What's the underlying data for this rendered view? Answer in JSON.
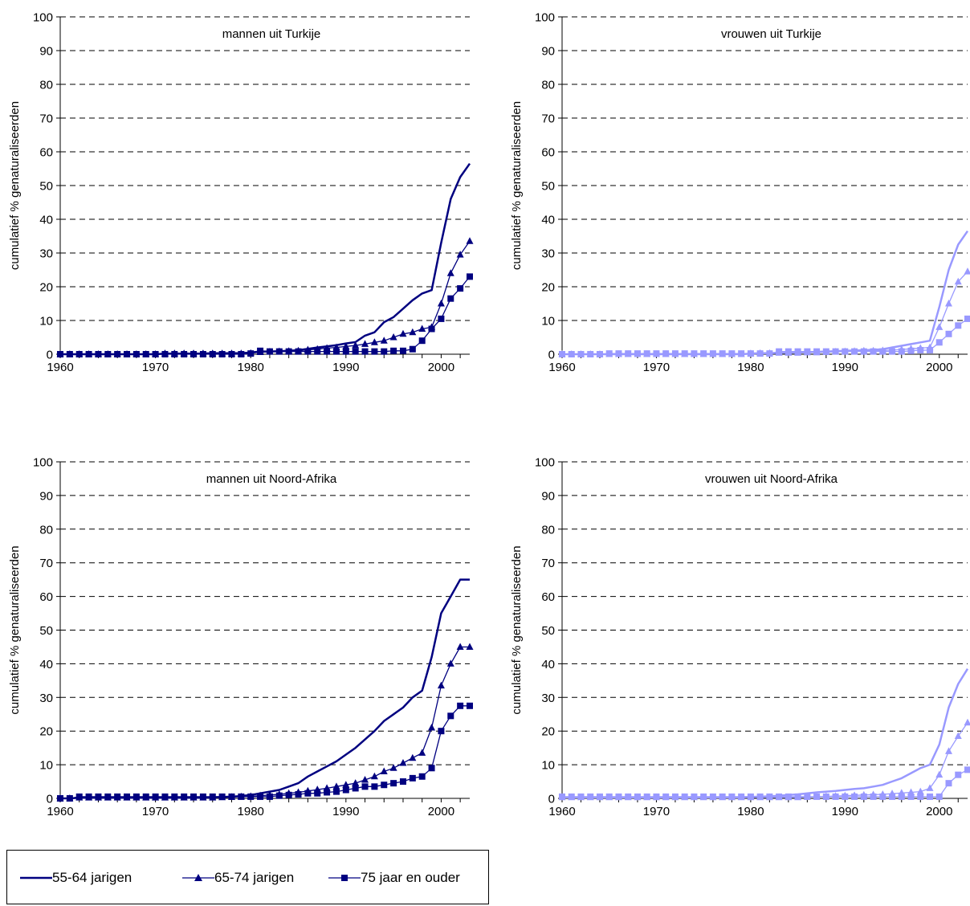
{
  "colors": {
    "men": "#000080",
    "women": "#9999ff"
  },
  "y_axis_label": "cumulatief  % genaturaliseerden",
  "legend": [
    {
      "label": "55-64 jarigen",
      "marker": "none"
    },
    {
      "label": "65-74 jarigen",
      "marker": "triangle"
    },
    {
      "label": "75 jaar en ouder",
      "marker": "square"
    }
  ],
  "chart_data": [
    {
      "type": "line",
      "title": "mannen uit Turkije",
      "ylabel": "cumulatief  % genaturaliseerden",
      "xlim": [
        1960,
        2003
      ],
      "ylim": [
        0,
        100
      ],
      "xticks": [
        1960,
        1970,
        1980,
        1990,
        2000
      ],
      "yticks": [
        0,
        10,
        20,
        30,
        40,
        50,
        60,
        70,
        80,
        90,
        100
      ],
      "grid": true,
      "x": [
        1960,
        1961,
        1962,
        1963,
        1964,
        1965,
        1966,
        1967,
        1968,
        1969,
        1970,
        1971,
        1972,
        1973,
        1974,
        1975,
        1976,
        1977,
        1978,
        1979,
        1980,
        1981,
        1982,
        1983,
        1984,
        1985,
        1986,
        1987,
        1988,
        1989,
        1990,
        1991,
        1992,
        1993,
        1994,
        1995,
        1996,
        1997,
        1998,
        1999,
        2000,
        2001,
        2002,
        2003
      ],
      "series": [
        {
          "name": "55-64 jarigen",
          "marker": "none",
          "values": [
            0,
            0,
            0,
            0,
            0,
            0,
            0,
            0,
            0,
            0,
            0,
            0.2,
            0.2,
            0.2,
            0.2,
            0.2,
            0.3,
            0.3,
            0.3,
            0.3,
            0.5,
            0.8,
            0.8,
            0.9,
            1.0,
            1.2,
            1.6,
            2.0,
            2.3,
            2.7,
            3.2,
            3.6,
            5.5,
            6.5,
            9.5,
            11,
            13.5,
            16,
            18,
            19,
            33,
            46,
            52.5,
            56.5
          ]
        },
        {
          "name": "65-74 jarigen",
          "marker": "triangle",
          "values": [
            0,
            0,
            0,
            0,
            0,
            0,
            0,
            0,
            0,
            0,
            0,
            0.2,
            0.2,
            0.2,
            0.2,
            0.2,
            0.2,
            0.2,
            0.2,
            0.2,
            0.3,
            0.6,
            0.7,
            0.8,
            0.9,
            1.0,
            1.3,
            1.5,
            1.8,
            2.0,
            2.3,
            2.6,
            3.0,
            3.5,
            4.0,
            5.0,
            6.0,
            6.5,
            7.5,
            8.0,
            15,
            24,
            29.5,
            33.5
          ]
        },
        {
          "name": "75 jaar en ouder",
          "marker": "square",
          "values": [
            0,
            0,
            0,
            0,
            0,
            0,
            0,
            0,
            0,
            0,
            0,
            0,
            0,
            0,
            0,
            0,
            0,
            0,
            0,
            0,
            0.2,
            1.0,
            0.8,
            0.8,
            0.8,
            0.8,
            0.8,
            0.8,
            0.8,
            0.8,
            0.8,
            0.8,
            0.8,
            0.8,
            0.8,
            1.0,
            1.0,
            1.5,
            4.0,
            7.5,
            10.5,
            16.5,
            19.5,
            23
          ]
        }
      ]
    },
    {
      "type": "line",
      "title": "vrouwen uit Turkije",
      "ylabel": "cumulatief  % genaturaliseerden",
      "xlim": [
        1960,
        2003
      ],
      "ylim": [
        0,
        100
      ],
      "xticks": [
        1960,
        1970,
        1980,
        1990,
        2000
      ],
      "yticks": [
        0,
        10,
        20,
        30,
        40,
        50,
        60,
        70,
        80,
        90,
        100
      ],
      "grid": true,
      "x": [
        1960,
        1961,
        1962,
        1963,
        1964,
        1965,
        1966,
        1967,
        1968,
        1969,
        1970,
        1971,
        1972,
        1973,
        1974,
        1975,
        1976,
        1977,
        1978,
        1979,
        1980,
        1981,
        1982,
        1983,
        1984,
        1985,
        1986,
        1987,
        1988,
        1989,
        1990,
        1991,
        1992,
        1993,
        1994,
        1995,
        1996,
        1997,
        1998,
        1999,
        2000,
        2001,
        2002,
        2003
      ],
      "series": [
        {
          "name": "55-64 jarigen",
          "marker": "none",
          "values": [
            0,
            0,
            0,
            0,
            0,
            0,
            0,
            0,
            0,
            0,
            0,
            0,
            0,
            0,
            0,
            0,
            0,
            0,
            0,
            0,
            0.2,
            0.3,
            0.3,
            0.4,
            0.4,
            0.5,
            0.6,
            0.7,
            0.8,
            0.9,
            1.0,
            1.1,
            1.2,
            1.3,
            1.5,
            2.0,
            2.5,
            3.0,
            3.5,
            4.0,
            14,
            25,
            32.5,
            36.5
          ]
        },
        {
          "name": "65-74 jarigen",
          "marker": "triangle",
          "values": [
            0,
            0,
            0,
            0,
            0,
            0,
            0,
            0,
            0,
            0,
            0,
            0,
            0,
            0,
            0,
            0,
            0,
            0,
            0,
            0,
            0.2,
            0.3,
            0.3,
            0.4,
            0.4,
            0.4,
            0.5,
            0.5,
            0.6,
            0.7,
            0.8,
            0.9,
            1.0,
            1.0,
            1.1,
            1.2,
            1.4,
            1.6,
            1.8,
            2.0,
            8.0,
            15,
            21.5,
            24.5
          ]
        },
        {
          "name": "75 jaar en ouder",
          "marker": "square",
          "values": [
            0,
            0,
            0,
            0,
            0,
            0.2,
            0.2,
            0.2,
            0.2,
            0.2,
            0.2,
            0.2,
            0.2,
            0.2,
            0.2,
            0.2,
            0.2,
            0.2,
            0.2,
            0.2,
            0.2,
            0.2,
            0.2,
            0.8,
            0.8,
            0.8,
            0.8,
            0.8,
            0.8,
            0.8,
            0.8,
            0.8,
            0.8,
            0.8,
            0.8,
            0.8,
            0.8,
            1.0,
            1.2,
            1.2,
            3.5,
            6.0,
            8.5,
            10.5
          ]
        }
      ]
    },
    {
      "type": "line",
      "title": "mannen uit Noord-Afrika",
      "ylabel": "cumulatief  % genaturaliseerden",
      "xlim": [
        1960,
        2003
      ],
      "ylim": [
        0,
        100
      ],
      "xticks": [
        1960,
        1970,
        1980,
        1990,
        2000
      ],
      "yticks": [
        0,
        10,
        20,
        30,
        40,
        50,
        60,
        70,
        80,
        90,
        100
      ],
      "grid": true,
      "x": [
        1960,
        1961,
        1962,
        1963,
        1964,
        1965,
        1966,
        1967,
        1968,
        1969,
        1970,
        1971,
        1972,
        1973,
        1974,
        1975,
        1976,
        1977,
        1978,
        1979,
        1980,
        1981,
        1982,
        1983,
        1984,
        1985,
        1986,
        1987,
        1988,
        1989,
        1990,
        1991,
        1992,
        1993,
        1994,
        1995,
        1996,
        1997,
        1998,
        1999,
        2000,
        2001,
        2002,
        2003
      ],
      "series": [
        {
          "name": "55-64 jarigen",
          "marker": "none",
          "values": [
            0,
            0,
            0.2,
            0.2,
            0.2,
            0.2,
            0.2,
            0.2,
            0.2,
            0.2,
            0.2,
            0.2,
            0.2,
            0.2,
            0.2,
            0.2,
            0.3,
            0.4,
            0.5,
            0.7,
            1.0,
            1.5,
            2.0,
            2.5,
            3.5,
            4.5,
            6.5,
            8.0,
            9.5,
            11,
            13,
            15,
            17.5,
            20,
            23,
            25,
            27,
            30,
            32,
            42,
            55,
            60,
            65,
            65
          ]
        },
        {
          "name": "65-74 jarigen",
          "marker": "triangle",
          "values": [
            0,
            0,
            0.2,
            0.2,
            0.2,
            0.2,
            0.2,
            0.2,
            0.2,
            0.2,
            0.2,
            0.2,
            0.2,
            0.2,
            0.2,
            0.2,
            0.2,
            0.3,
            0.4,
            0.5,
            0.6,
            0.8,
            1.0,
            1.2,
            1.5,
            1.8,
            2.2,
            2.6,
            3.0,
            3.5,
            4.0,
            4.5,
            5.5,
            6.5,
            8.0,
            9.0,
            10.5,
            12,
            13.5,
            21,
            33.5,
            40,
            45,
            45
          ]
        },
        {
          "name": "75 jaar en ouder",
          "marker": "square",
          "values": [
            0,
            0,
            0.5,
            0.5,
            0.5,
            0.5,
            0.5,
            0.5,
            0.5,
            0.5,
            0.5,
            0.5,
            0.5,
            0.5,
            0.5,
            0.5,
            0.5,
            0.5,
            0.5,
            0.5,
            0.5,
            0.5,
            0.5,
            0.8,
            1.0,
            1.2,
            1.5,
            1.5,
            1.8,
            2.0,
            2.5,
            3.0,
            3.5,
            3.5,
            4.0,
            4.5,
            5.0,
            6.0,
            6.5,
            9.0,
            20,
            24.5,
            27.5,
            27.5
          ]
        }
      ]
    },
    {
      "type": "line",
      "title": "vrouwen uit Noord-Afrika",
      "ylabel": "cumulatief  % genaturaliseerden",
      "xlim": [
        1960,
        2003
      ],
      "ylim": [
        0,
        100
      ],
      "xticks": [
        1960,
        1970,
        1980,
        1990,
        2000
      ],
      "yticks": [
        0,
        10,
        20,
        30,
        40,
        50,
        60,
        70,
        80,
        90,
        100
      ],
      "grid": true,
      "x": [
        1960,
        1961,
        1962,
        1963,
        1964,
        1965,
        1966,
        1967,
        1968,
        1969,
        1970,
        1971,
        1972,
        1973,
        1974,
        1975,
        1976,
        1977,
        1978,
        1979,
        1980,
        1981,
        1982,
        1983,
        1984,
        1985,
        1986,
        1987,
        1988,
        1989,
        1990,
        1991,
        1992,
        1993,
        1994,
        1995,
        1996,
        1997,
        1998,
        1999,
        2000,
        2001,
        2002,
        2003
      ],
      "series": [
        {
          "name": "55-64 jarigen",
          "marker": "none",
          "values": [
            0.3,
            0.3,
            0.3,
            0.3,
            0.3,
            0.3,
            0.3,
            0.3,
            0.3,
            0.3,
            0.3,
            0.3,
            0.3,
            0.3,
            0.3,
            0.3,
            0.3,
            0.3,
            0.3,
            0.3,
            0.4,
            0.5,
            0.6,
            0.8,
            1.0,
            1.2,
            1.5,
            1.8,
            2.0,
            2.2,
            2.5,
            2.8,
            3.0,
            3.5,
            4.0,
            5.0,
            6.0,
            7.5,
            9.0,
            10,
            16,
            27,
            34,
            38.5
          ]
        },
        {
          "name": "65-74 jarigen",
          "marker": "triangle",
          "values": [
            0.3,
            0.3,
            0.3,
            0.3,
            0.3,
            0.3,
            0.3,
            0.3,
            0.3,
            0.3,
            0.3,
            0.3,
            0.3,
            0.3,
            0.3,
            0.3,
            0.3,
            0.3,
            0.3,
            0.3,
            0.3,
            0.3,
            0.3,
            0.3,
            0.3,
            0.3,
            0.4,
            0.5,
            0.6,
            0.7,
            0.8,
            0.9,
            1.0,
            1.1,
            1.2,
            1.4,
            1.6,
            1.8,
            2.0,
            3.0,
            7.0,
            14,
            18.5,
            22.5
          ]
        },
        {
          "name": "75 jaar en ouder",
          "marker": "square",
          "values": [
            0.5,
            0.5,
            0.5,
            0.5,
            0.5,
            0.5,
            0.5,
            0.5,
            0.5,
            0.5,
            0.5,
            0.5,
            0.5,
            0.5,
            0.5,
            0.5,
            0.5,
            0.5,
            0.5,
            0.5,
            0.5,
            0.5,
            0.5,
            0.5,
            0.5,
            0.5,
            0.5,
            0.5,
            0.5,
            0.5,
            0.5,
            0.5,
            0.5,
            0.5,
            0.5,
            0.5,
            0.5,
            0.5,
            0.5,
            0.5,
            0.5,
            4.5,
            7.0,
            8.5
          ]
        }
      ]
    }
  ]
}
